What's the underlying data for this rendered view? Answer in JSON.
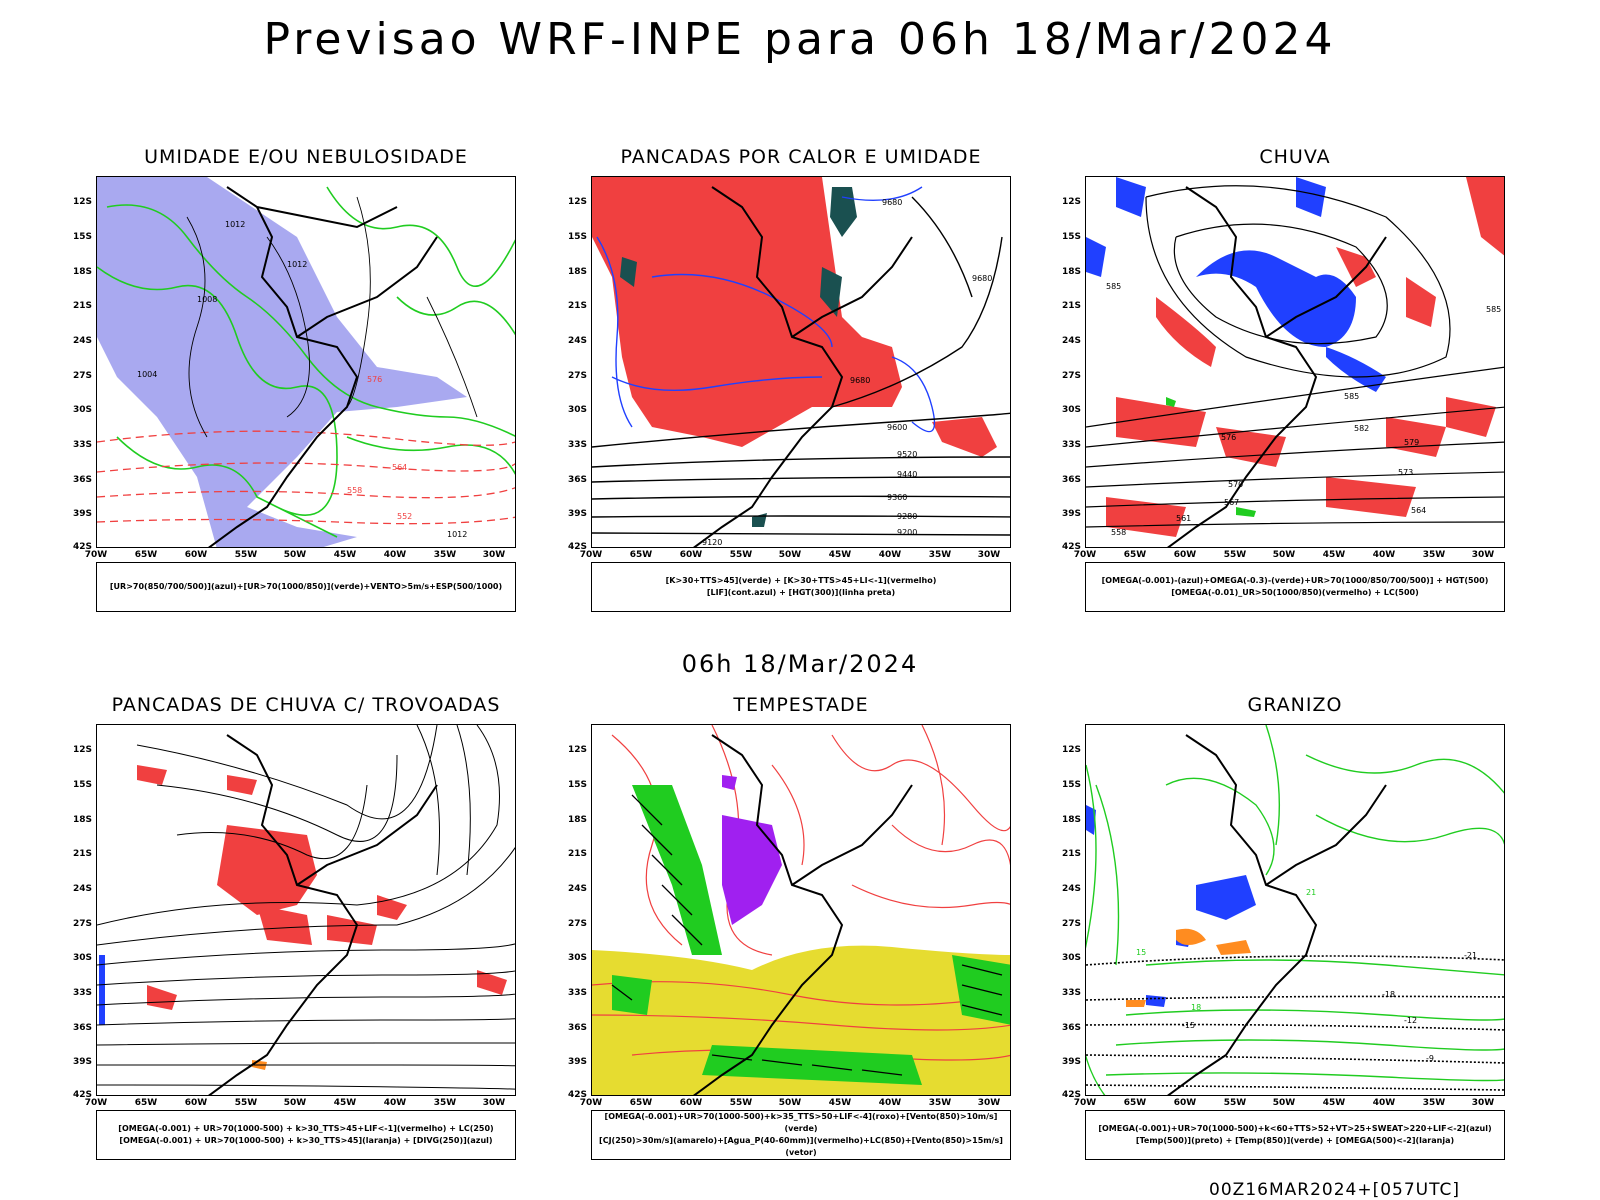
{
  "title": "Previsao WRF-INPE  para 06h 18/Mar/2024",
  "mid_date": "06h 18/Mar/2024",
  "footer": "00Z16MAR2024+[057UTC]",
  "lat_labels": [
    "12S",
    "15S",
    "18S",
    "21S",
    "24S",
    "27S",
    "30S",
    "33S",
    "36S",
    "39S",
    "42S"
  ],
  "lon_labels": [
    "70W",
    "65W",
    "60W",
    "55W",
    "50W",
    "45W",
    "40W",
    "35W",
    "30W"
  ],
  "panels": [
    {
      "title": "UMIDADE E/OU NEBULOSIDADE",
      "legend": [
        "[UR>70(850/700/500)](azul)+[UR>70(1000/850)](verde)+VENTO>5m/s+ESP(500/1000)"
      ],
      "contour_labels": [
        "1012",
        "1008",
        "1004",
        "576",
        "564",
        "558",
        "552"
      ]
    },
    {
      "title": "PANCADAS POR CALOR E UMIDADE",
      "legend": [
        "[K>30+TTS>45](verde) + [K>30+TTS>45+LI<-1](vermelho)",
        "[LIF](cont.azul) + [HGT(300)](linha preta)"
      ],
      "contour_labels": [
        "9680",
        "9600",
        "9520",
        "9440",
        "9360",
        "9280",
        "9200",
        "9120"
      ]
    },
    {
      "title": "CHUVA",
      "legend": [
        "[OMEGA(-0.001)-(azul)+OMEGA(-0.3)-(verde)+UR>70(1000/850/700/500)] + HGT(500)",
        "[OMEGA(-0.01)_UR>50(1000/850)(vermelho) + LC(500)"
      ],
      "contour_labels": [
        "585",
        "582",
        "579",
        "576",
        "573",
        "570",
        "567",
        "564",
        "561",
        "558"
      ]
    },
    {
      "title": "PANCADAS DE CHUVA C/ TROVOADAS",
      "legend": [
        "[OMEGA(-0.001) + UR>70(1000-500) + k>30_TTS>45+LIF<-1](vermelho) + LC(250)",
        "[OMEGA(-0.001) + UR>70(1000-500) + k>30_TTS>45](laranja) + [DIVG(250)](azul)"
      ],
      "contour_labels": []
    },
    {
      "title": "TEMPESTADE",
      "legend": [
        "[OMEGA(-0.001)+UR>70(1000-500)+k>35_TTS>50+LIF<-4](roxo)+[Vento(850)>10m/s](verde)",
        "[CJ(250)>30m/s](amarelo)+[Agua_P(40-60mm)](vermelho)+LC(850)+[Vento(850)>15m/s](vetor)"
      ],
      "contour_labels": []
    },
    {
      "title": "GRANIZO",
      "legend": [
        "[OMEGA(-0.001)+UR>70(1000-500)+k<60+TTS>52+VT>25+SWEAT>220+LIF<-2](azul)",
        "[Temp(500)](preto) + [Temp(850)](verde) + [OMEGA(500)<-2](laranja)"
      ],
      "contour_labels": [
        "-21",
        "-18",
        "-15",
        "-12",
        "-9",
        "15",
        "18",
        "21"
      ]
    }
  ],
  "colors": {
    "blue": "#2040ff",
    "green": "#20cc20",
    "red": "#f04040",
    "lavender": "#a9a9f0",
    "yellow": "#e6dc30",
    "purple": "#a020f0",
    "orange": "#ff8c20",
    "teal": "#1a5050"
  }
}
